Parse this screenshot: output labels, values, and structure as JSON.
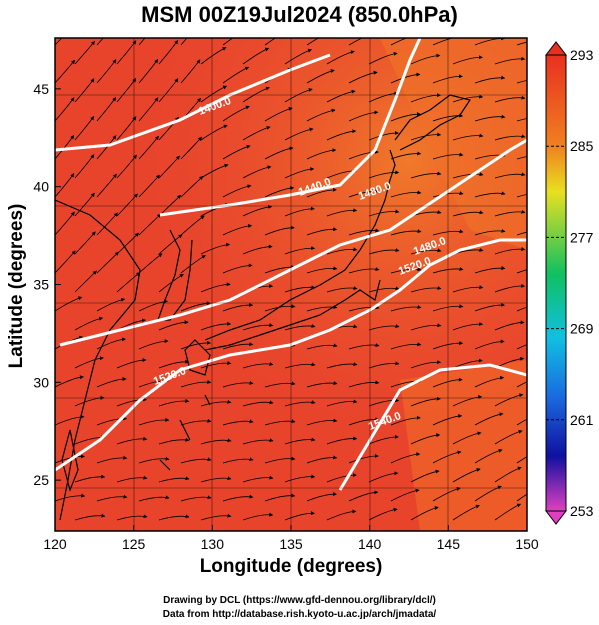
{
  "title": "MSM 00Z19Jul2024 (850.0hPa)",
  "x_axis": {
    "label": "Longitude (degrees)",
    "range": [
      120,
      150
    ],
    "ticks": [
      "120",
      "125",
      "130",
      "135",
      "140",
      "145",
      "150"
    ]
  },
  "y_axis": {
    "label": "Latitude  (degrees)",
    "range": [
      22.4,
      47.6
    ],
    "ticks": [
      "25",
      "30",
      "35",
      "40",
      "45"
    ]
  },
  "colorbar": {
    "range": [
      253,
      293
    ],
    "ticks": [
      "293",
      "285",
      "277",
      "269",
      "261",
      "253"
    ],
    "colors": [
      "#e040c0",
      "#1010a0",
      "#1a6ae0",
      "#10c0e0",
      "#10c060",
      "#e8e020",
      "#f08020",
      "#e83020"
    ]
  },
  "contours": [
    {
      "label": "1400.0"
    },
    {
      "label": "1440.0"
    },
    {
      "label": "1480.0"
    },
    {
      "label": "1480.0"
    },
    {
      "label": "1520.0"
    },
    {
      "label": "1520.0"
    },
    {
      "label": "1540.0"
    }
  ],
  "credits": {
    "line1": "Drawing by DCL (https://www.gfd-dennou.org/library/dcl/)",
    "line2": "Data from http://database.rish.kyoto-u.ac.jp/arch/jmadata/"
  },
  "colors": {
    "field_warm": "#e8442c",
    "field_hot": "#f06a2a",
    "coast": "#000000",
    "contour": "#ffffff"
  }
}
